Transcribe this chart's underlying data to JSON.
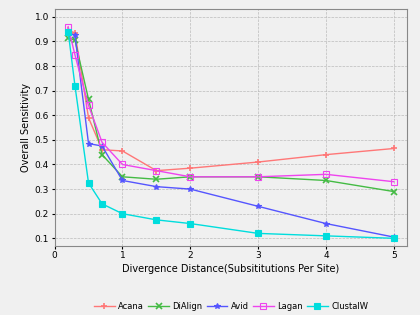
{
  "title": "",
  "xlabel": "Divergence Distance(Subsititutions Per Site)",
  "ylabel": "Overall Sensitivity",
  "xlim": [
    0,
    5.2
  ],
  "ylim": [
    0.07,
    1.03
  ],
  "yticks": [
    0.1,
    0.2,
    0.3,
    0.4,
    0.5,
    0.6,
    0.7,
    0.8,
    0.9,
    1.0
  ],
  "xticks": [
    0,
    1,
    2,
    3,
    4,
    5
  ],
  "series": [
    {
      "name": "Acana",
      "color": "#ff7777",
      "marker": "+",
      "markersize": 4,
      "markeredgewidth": 1.2,
      "x": [
        0.2,
        0.3,
        0.5,
        0.7,
        1.0,
        1.5,
        2.0,
        3.0,
        4.0,
        5.0
      ],
      "y": [
        0.945,
        0.935,
        0.59,
        0.46,
        0.455,
        0.375,
        0.385,
        0.41,
        0.44,
        0.465
      ]
    },
    {
      "name": "DiAlign",
      "color": "#44bb44",
      "marker": "x",
      "markersize": 4,
      "markeredgewidth": 1.2,
      "x": [
        0.2,
        0.3,
        0.5,
        0.7,
        1.0,
        1.5,
        2.0,
        3.0,
        4.0,
        5.0
      ],
      "y": [
        0.915,
        0.905,
        0.665,
        0.44,
        0.35,
        0.34,
        0.35,
        0.35,
        0.335,
        0.29
      ]
    },
    {
      "name": "Avid",
      "color": "#5555ff",
      "marker": "*",
      "markersize": 4,
      "markeredgewidth": 0.8,
      "x": [
        0.2,
        0.3,
        0.5,
        0.7,
        1.0,
        1.5,
        2.0,
        3.0,
        4.0,
        5.0
      ],
      "y": [
        0.935,
        0.925,
        0.485,
        0.475,
        0.335,
        0.31,
        0.3,
        0.23,
        0.16,
        0.105
      ]
    },
    {
      "name": "Lagan",
      "color": "#ee44ee",
      "marker": "s",
      "markersize": 4,
      "markeredgewidth": 0.8,
      "x": [
        0.2,
        0.3,
        0.5,
        0.7,
        1.0,
        1.5,
        2.0,
        3.0,
        4.0,
        5.0
      ],
      "y": [
        0.96,
        0.845,
        0.64,
        0.49,
        0.4,
        0.375,
        0.35,
        0.35,
        0.36,
        0.33
      ]
    },
    {
      "name": "ClustalW",
      "color": "#00dddd",
      "marker": "s",
      "markersize": 4,
      "markeredgewidth": 0.8,
      "x": [
        0.2,
        0.3,
        0.5,
        0.7,
        1.0,
        1.5,
        2.0,
        3.0,
        4.0,
        5.0
      ],
      "y": [
        0.94,
        0.72,
        0.325,
        0.24,
        0.2,
        0.175,
        0.16,
        0.12,
        0.11,
        0.1
      ]
    }
  ],
  "legend_fontsize": 6,
  "axis_fontsize": 7,
  "tick_fontsize": 6.5,
  "background_color": "#f0f0f0",
  "plot_bg_color": "#f0f0f0",
  "grid_color": "#bbbbbb",
  "linewidth": 1.0
}
